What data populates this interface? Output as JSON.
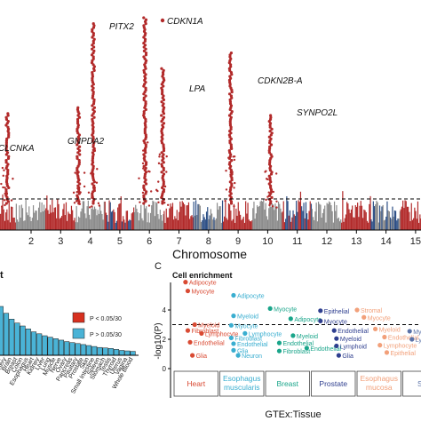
{
  "chart_data": [
    {
      "type": "scatter",
      "subtype": "manhattan",
      "xlabel": "Chromosome",
      "ylabel": "",
      "x_ticks": [
        "2",
        "3",
        "4",
        "5",
        "6",
        "7",
        "8",
        "9",
        "10",
        "11",
        "12",
        "13",
        "14",
        "15"
      ],
      "gene_labels": [
        {
          "label": "CLCNKA",
          "chromosome": 1.8
        },
        {
          "label": "GNPDA2",
          "chromosome": 3.5
        },
        {
          "label": "PITX2",
          "chromosome": 4.3
        },
        {
          "label": "CDKN1A",
          "chromosome": 6.2
        },
        {
          "label": "LPA",
          "chromosome": 6.7
        },
        {
          "label": "CDKN2B-A",
          "chromosome": 9.3
        },
        {
          "label": "SYNPO2L",
          "chromosome": 10.5
        }
      ],
      "peaks": [
        {
          "chromosome": 1.2,
          "height": 0.55
        },
        {
          "chromosome": 3.6,
          "height": 0.58
        },
        {
          "chromosome": 4.1,
          "height": 0.97
        },
        {
          "chromosome": 5.85,
          "height": 1.0
        },
        {
          "chromosome": 6.45,
          "height": 0.76
        },
        {
          "chromosome": 8.75,
          "height": 0.83
        },
        {
          "chromosome": 10.1,
          "height": 0.54
        }
      ],
      "grid": false,
      "colors": {
        "odd": "#b22a2a",
        "even": "#8b8b8b",
        "blue_band": "#2d4f86",
        "threshold": "#000000"
      }
    },
    {
      "type": "bar",
      "title": "",
      "categories": [
        "Adipose",
        "Artery",
        "Brain",
        "Breast",
        "Colon",
        "Esophagus",
        "Heart",
        "Kidney",
        "Liver",
        "Lung",
        "Muscle",
        "Nerve",
        "Ovary",
        "Pancreas",
        "Pituitary",
        "Prostate",
        "Skin",
        "Small Intestine",
        "Spleen",
        "Stomach",
        "Testis",
        "Thyroid",
        "Uterus",
        "Vagina",
        "Whole Blood"
      ],
      "values": [
        5.0,
        4.3,
        3.7,
        3.3,
        3.0,
        2.7,
        2.4,
        2.2,
        2.0,
        1.85,
        1.7,
        1.55,
        1.4,
        1.3,
        1.2,
        1.1,
        1.0,
        0.9,
        0.8,
        0.75,
        0.7,
        0.6,
        0.5,
        0.45,
        0.4
      ],
      "legend": [
        {
          "label": "P < 0.05/30",
          "color": "#d7301f"
        },
        {
          "label": "P > 0.05/30",
          "color": "#4ab3d6"
        }
      ],
      "legend_position": "right",
      "panel_letter": "t"
    },
    {
      "type": "scatter",
      "panel_letter": "C",
      "title": "Cell enrichment",
      "ylabel": "-log10(P)",
      "xlabel": "GTEx:Tissue",
      "ylim": [
        0,
        6
      ],
      "y_ticks": [
        0,
        2,
        4
      ],
      "threshold": 3.0,
      "groups": [
        {
          "name": "Heart",
          "color": "#d94a33"
        },
        {
          "name": "Esophagus muscularis",
          "color": "#3aaed0"
        },
        {
          "name": "Breast",
          "color": "#1aa58a"
        },
        {
          "name": "Prostate",
          "color": "#2f3f8f"
        },
        {
          "name": "Esophagus mucosa",
          "color": "#f2a07a"
        },
        {
          "name": "Skel",
          "color": "#5a72a8"
        }
      ],
      "points": [
        {
          "group": 0,
          "label": "Adipocyte",
          "x": 0.25,
          "y": 5.9
        },
        {
          "group": 0,
          "label": "Myocyte",
          "x": 0.3,
          "y": 5.3
        },
        {
          "group": 0,
          "label": "Myeloid",
          "x": 0.45,
          "y": 3.0
        },
        {
          "group": 0,
          "label": "Fibroblast",
          "x": 0.3,
          "y": 2.6
        },
        {
          "group": 0,
          "label": "Lymphocyte",
          "x": 0.6,
          "y": 2.4
        },
        {
          "group": 0,
          "label": "Endothelial",
          "x": 0.35,
          "y": 1.8
        },
        {
          "group": 0,
          "label": "Glia",
          "x": 0.4,
          "y": 0.9
        },
        {
          "group": 1,
          "label": "Adipocyte",
          "x": 1.3,
          "y": 5.0
        },
        {
          "group": 1,
          "label": "Myeloid",
          "x": 1.3,
          "y": 3.6
        },
        {
          "group": 1,
          "label": "Myocyte",
          "x": 1.25,
          "y": 2.95
        },
        {
          "group": 1,
          "label": "Lymphocyte",
          "x": 1.55,
          "y": 2.4
        },
        {
          "group": 1,
          "label": "Fibroblast",
          "x": 1.25,
          "y": 2.1
        },
        {
          "group": 1,
          "label": "Endothelial",
          "x": 1.3,
          "y": 1.7
        },
        {
          "group": 1,
          "label": "Glia",
          "x": 1.3,
          "y": 1.25
        },
        {
          "group": 1,
          "label": "Neuron",
          "x": 1.4,
          "y": 0.9
        },
        {
          "group": 2,
          "label": "Myocyte",
          "x": 2.1,
          "y": 4.1
        },
        {
          "group": 2,
          "label": "Adipocyte",
          "x": 2.55,
          "y": 3.4
        },
        {
          "group": 2,
          "label": "Myeloid",
          "x": 2.6,
          "y": 2.25
        },
        {
          "group": 2,
          "label": "Endothelial",
          "x": 2.3,
          "y": 1.75
        },
        {
          "group": 2,
          "label": "Endothelial",
          "x": 2.9,
          "y": 1.4
        },
        {
          "group": 2,
          "label": "Fibroblast",
          "x": 2.3,
          "y": 1.2
        },
        {
          "group": 3,
          "label": "Epithelial",
          "x": 3.2,
          "y": 3.95
        },
        {
          "group": 3,
          "label": "Myocyte",
          "x": 3.2,
          "y": 3.25
        },
        {
          "group": 3,
          "label": "Endothelial",
          "x": 3.5,
          "y": 2.6
        },
        {
          "group": 3,
          "label": "Myeloid",
          "x": 3.55,
          "y": 2.05
        },
        {
          "group": 3,
          "label": "Lymphoid",
          "x": 3.55,
          "y": 1.55
        },
        {
          "group": 3,
          "label": "Glia",
          "x": 3.6,
          "y": 0.9
        },
        {
          "group": 4,
          "label": "Stromal",
          "x": 4.0,
          "y": 4.0
        },
        {
          "group": 4,
          "label": "Myocyte",
          "x": 4.15,
          "y": 3.5
        },
        {
          "group": 4,
          "label": "Myeloid",
          "x": 4.4,
          "y": 2.7
        },
        {
          "group": 4,
          "label": "Endothelial",
          "x": 4.6,
          "y": 2.15
        },
        {
          "group": 4,
          "label": "Lymphocyte",
          "x": 4.5,
          "y": 1.6
        },
        {
          "group": 4,
          "label": "Epithelial",
          "x": 4.65,
          "y": 1.1
        },
        {
          "group": 5,
          "label": "Myeloid",
          "x": 5.15,
          "y": 2.55
        },
        {
          "group": 5,
          "label": "Lymp",
          "x": 5.2,
          "y": 2.0
        }
      ]
    }
  ]
}
